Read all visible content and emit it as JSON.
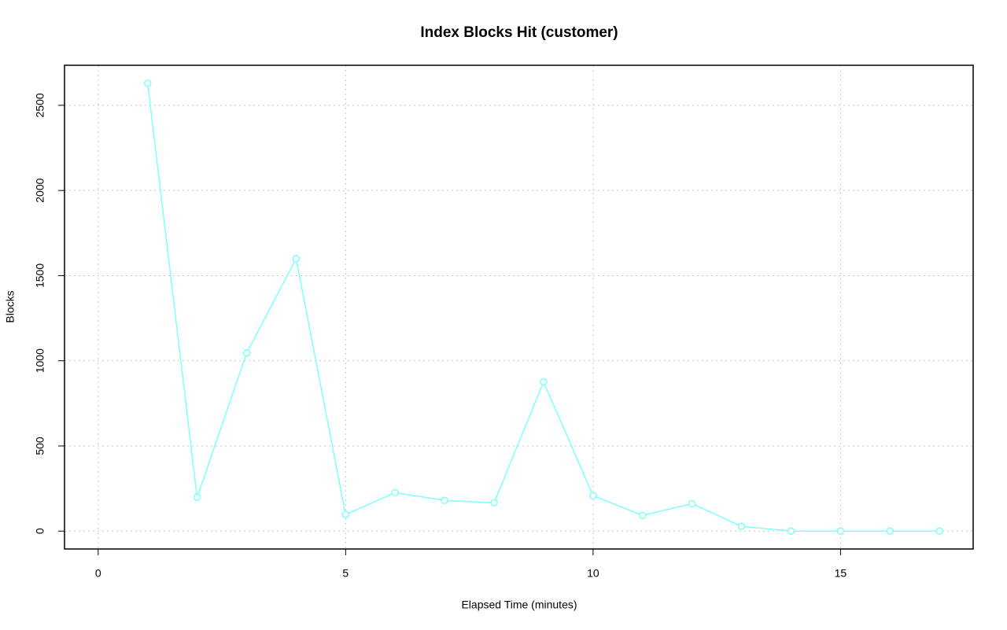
{
  "chart_data": {
    "type": "line",
    "title": "Index Blocks Hit (customer)",
    "x_label": "Elapsed Time (minutes)",
    "y_label": "Blocks",
    "x": [
      1,
      2,
      3,
      4,
      5,
      6,
      7,
      8,
      9,
      10,
      11,
      12,
      13,
      14,
      15,
      16,
      17
    ],
    "series": [
      {
        "name": "customer",
        "color": "#7fffff",
        "values": [
          2630,
          198,
          1045,
          1600,
          97,
          226,
          180,
          166,
          876,
          208,
          92,
          161,
          28,
          0,
          0,
          0,
          0
        ]
      }
    ],
    "xlim": [
      -0.68,
      17.68
    ],
    "ylim": [
      -105,
      2735
    ],
    "xticks": [
      0,
      5,
      10,
      15
    ],
    "yticks": [
      0,
      500,
      1000,
      1500,
      2000,
      2500
    ],
    "grid": true
  }
}
